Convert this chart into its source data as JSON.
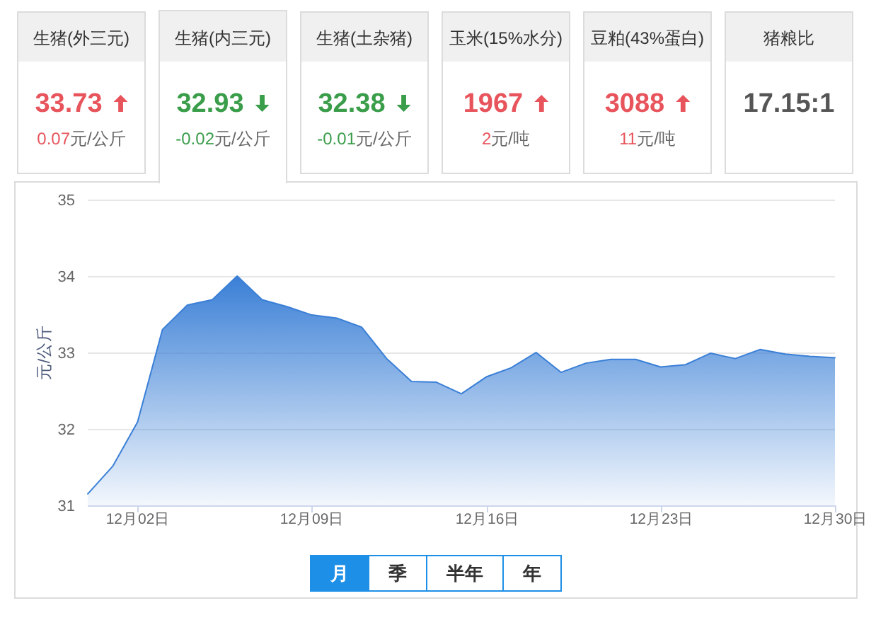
{
  "chart_data": [
    {
      "type": "other",
      "title": "生猪(外三元)",
      "values": [
        33.73,
        0.07
      ],
      "data_labels": true,
      "annotations": [
        "元/公斤"
      ],
      "color": "#e8545c"
    },
    {
      "type": "other",
      "title": "生猪(内三元)",
      "values": [
        32.93,
        -0.02
      ],
      "data_labels": true,
      "annotations": [
        "元/公斤"
      ],
      "color": "#3a9d4a"
    },
    {
      "type": "other",
      "title": "生猪(土杂猪)",
      "values": [
        32.38,
        -0.01
      ],
      "data_labels": true,
      "annotations": [
        "元/公斤"
      ],
      "color": "#3a9d4a"
    },
    {
      "type": "other",
      "title": "玉米(15%水分)",
      "values": [
        1967,
        2
      ],
      "data_labels": true,
      "annotations": [
        "元/吨"
      ],
      "color": "#e8545c"
    },
    {
      "type": "other",
      "title": "豆粕(43%蛋白)",
      "values": [
        3088,
        11
      ],
      "data_labels": true,
      "annotations": [
        "元/吨"
      ],
      "color": "#e8545c"
    },
    {
      "type": "other",
      "title": "猪粮比",
      "annotations": [
        "17.15:1"
      ],
      "color": "#555555"
    },
    {
      "type": "area",
      "ylabel": "元/公斤",
      "color": "#3a7fd6",
      "x": [
        "--11-30",
        "--12-01",
        "--12-02",
        "--12-03",
        "--12-04",
        "--12-05",
        "--12-06",
        "--12-07",
        "--12-08",
        "--12-09",
        "--12-10",
        "--12-11",
        "--12-12",
        "--12-13",
        "--12-14",
        "--12-15",
        "--12-16",
        "--12-17",
        "--12-18",
        "--12-19",
        "--12-20",
        "--12-21",
        "--12-22",
        "--12-23",
        "--12-24",
        "--12-25",
        "--12-26",
        "--12-27",
        "--12-28",
        "--12-29",
        "--12-30"
      ],
      "values": [
        31.15,
        31.51,
        32.09,
        33.3,
        33.62,
        33.69,
        34,
        33.69,
        33.6,
        33.49,
        33.45,
        33.33,
        32.92,
        32.62,
        32.61,
        32.46,
        32.68,
        32.8,
        33.0,
        32.74,
        32.86,
        32.91,
        32.91,
        32.81,
        32.84,
        32.99,
        32.92,
        33.04,
        32.98,
        32.95,
        32.93
      ],
      "xlim": [
        "--11-30",
        "--12-30"
      ],
      "xticks": [
        {
          "value": "--12-02",
          "label": "12月02日"
        },
        {
          "value": "--12-09",
          "label": "12月09日"
        },
        {
          "value": "--12-16",
          "label": "12月16日"
        },
        {
          "value": "--12-23",
          "label": "12月23日"
        },
        {
          "value": "--12-30",
          "label": "12月30日"
        }
      ],
      "ylim": [
        31,
        35
      ],
      "yticks": [
        31,
        32,
        33,
        34,
        35
      ],
      "grid": "y"
    },
    {
      "type": "other",
      "categories": [
        "月",
        "季",
        "半年",
        "年"
      ],
      "colors": [
        "#1e8fe6",
        "#ffffff",
        "#ffffff",
        "#ffffff"
      ]
    }
  ]
}
